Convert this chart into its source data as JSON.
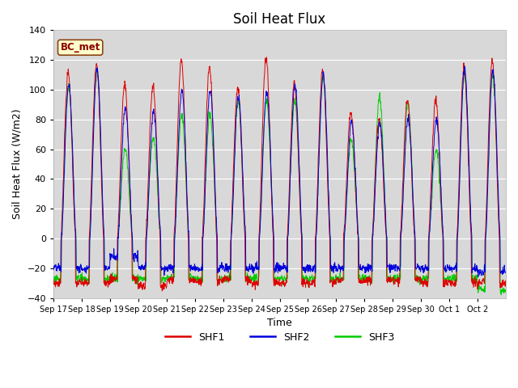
{
  "title": "Soil Heat Flux",
  "ylabel": "Soil Heat Flux (W/m2)",
  "xlabel": "Time",
  "ylim": [
    -40,
    140
  ],
  "yticks": [
    -40,
    -20,
    0,
    20,
    40,
    60,
    80,
    100,
    120,
    140
  ],
  "xtick_labels": [
    "Sep 17",
    "Sep 18",
    "Sep 19",
    "Sep 20",
    "Sep 21",
    "Sep 22",
    "Sep 23",
    "Sep 24",
    "Sep 25",
    "Sep 26",
    "Sep 27",
    "Sep 28",
    "Sep 29",
    "Sep 30",
    "Oct 1",
    "Oct 2"
  ],
  "colors": {
    "SHF1": "#dd0000",
    "SHF2": "#0000dd",
    "SHF3": "#00cc00"
  },
  "legend_label": "BC_met",
  "plot_bg_color": "#d8d8d8",
  "fig_bg_color": "#ffffff",
  "n_days": 16,
  "title_fontsize": 12,
  "axis_label_fontsize": 9,
  "tick_fontsize": 8,
  "peak_shf1": [
    111,
    118,
    104,
    103,
    120,
    115,
    101,
    122,
    105,
    113,
    85,
    80,
    93,
    93,
    115,
    119
  ],
  "peak_shf2": [
    103,
    114,
    88,
    85,
    100,
    100,
    95,
    98,
    103,
    110,
    79,
    78,
    80,
    80,
    113,
    113
  ],
  "peak_shf3": [
    103,
    113,
    60,
    68,
    83,
    83,
    93,
    93,
    93,
    108,
    66,
    95,
    92,
    60,
    110,
    110
  ],
  "night_shf1": [
    -30,
    -30,
    -27,
    -32,
    -28,
    -29,
    -28,
    -30,
    -30,
    -30,
    -28,
    -28,
    -28,
    -30,
    -30,
    -30
  ],
  "night_shf2": [
    -20,
    -20,
    -12,
    -20,
    -20,
    -20,
    -20,
    -20,
    -20,
    -20,
    -20,
    -20,
    -20,
    -20,
    -20,
    -22
  ],
  "night_shf3": [
    -27,
    -27,
    -27,
    -27,
    -27,
    -27,
    -26,
    -27,
    -27,
    -27,
    -27,
    -27,
    -27,
    -27,
    -27,
    -35
  ],
  "linewidth": 0.7
}
